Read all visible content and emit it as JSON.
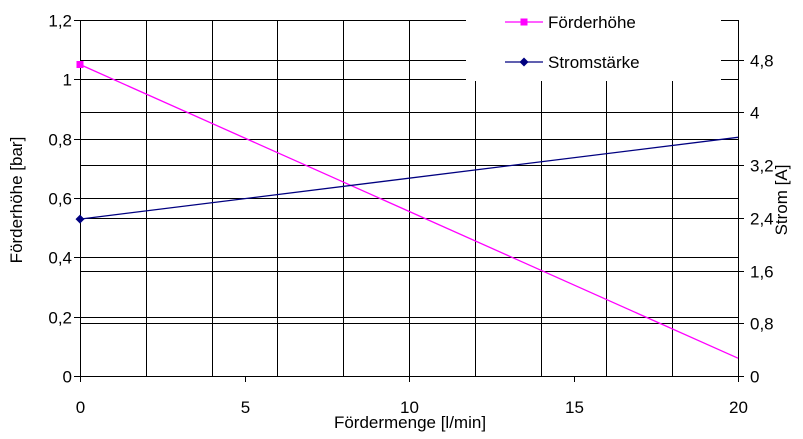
{
  "chart_data": {
    "type": "line",
    "xlabel": "Fördermenge [l/min]",
    "ylabel_left": "Förderhöhe [bar]",
    "ylabel_right": "Strom [A]",
    "xlim": [
      0,
      20
    ],
    "ylim_left": [
      0,
      1.2
    ],
    "ylim_right": [
      0,
      5.4
    ],
    "x_ticks": [
      "0",
      "5",
      "10",
      "15",
      "20"
    ],
    "y_left_ticks": [
      "0",
      "0,2",
      "0,4",
      "0,6",
      "0,8",
      "1",
      "1,2"
    ],
    "y_right_ticks": [
      "0",
      "0,8",
      "1,6",
      "2,4",
      "3,2",
      "4",
      "4,8"
    ],
    "grid": true,
    "legend_position": "top-right",
    "series": [
      {
        "name": "Förderhöhe",
        "axis": "left",
        "color": "#ff00ff",
        "marker": "square",
        "x": [
          0,
          20
        ],
        "y": [
          1.05,
          0.06
        ]
      },
      {
        "name": "Stromstärke",
        "axis": "right",
        "color": "#000080",
        "marker": "diamond",
        "x": [
          0,
          20
        ],
        "y": [
          2.38,
          3.62
        ]
      }
    ]
  }
}
